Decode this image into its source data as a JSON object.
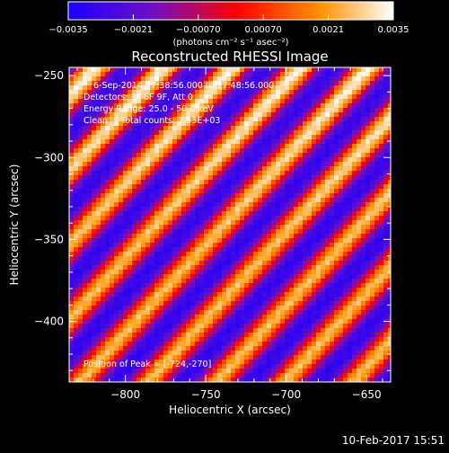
{
  "chart_data": {
    "type": "heatmap",
    "title": "Reconstructed RHESSI Image",
    "xlabel": "Heliocentric X (arcsec)",
    "ylabel": "Heliocentric Y (arcsec)",
    "xlim": [
      -835,
      -635
    ],
    "ylim": [
      -437,
      -245
    ],
    "xticks": [
      -800,
      -750,
      -700,
      -650
    ],
    "yticks": [
      -400,
      -350,
      -300,
      -250
    ],
    "xtick_labels": [
      "−800",
      "−750",
      "−700",
      "−650"
    ],
    "ytick_labels": [
      "−400",
      "−350",
      "−300",
      "−250"
    ],
    "colorbar": {
      "range": [
        -0.0035,
        0.0035
      ],
      "ticks": [
        -0.0035,
        -0.0021,
        -0.0007,
        0.0007,
        0.0021,
        0.0035
      ],
      "tick_labels": [
        "−0.0035",
        "−0.0021",
        "−0.00070",
        "0.00070",
        "0.0021",
        "0.0035"
      ],
      "unit_label": "(photons cm⁻² s⁻¹ asec⁻²)",
      "colors": [
        "#1a00ff",
        "#6a10c8",
        "#ff0000",
        "#ff9400",
        "#ffffff"
      ]
    },
    "info_lines": [
      "6-Sep-2014 17:38:56.000 to 17:48:56.000",
      "Detectors: 3F 6F 9F, Att 0",
      "Energy Range: 25.0 - 50.0 keV",
      "Clean     Total counts: 7.53E+03"
    ],
    "peak_text": "Position of Peak = [-724,-270]",
    "peak_position": [
      -724,
      -270
    ],
    "stripe_pattern": {
      "orientation": "diagonal, upper-left to lower-right",
      "period_arcsec": 76,
      "stripe_count": 5
    }
  },
  "footer": {
    "timestamp": "10-Feb-2017 15:51"
  }
}
